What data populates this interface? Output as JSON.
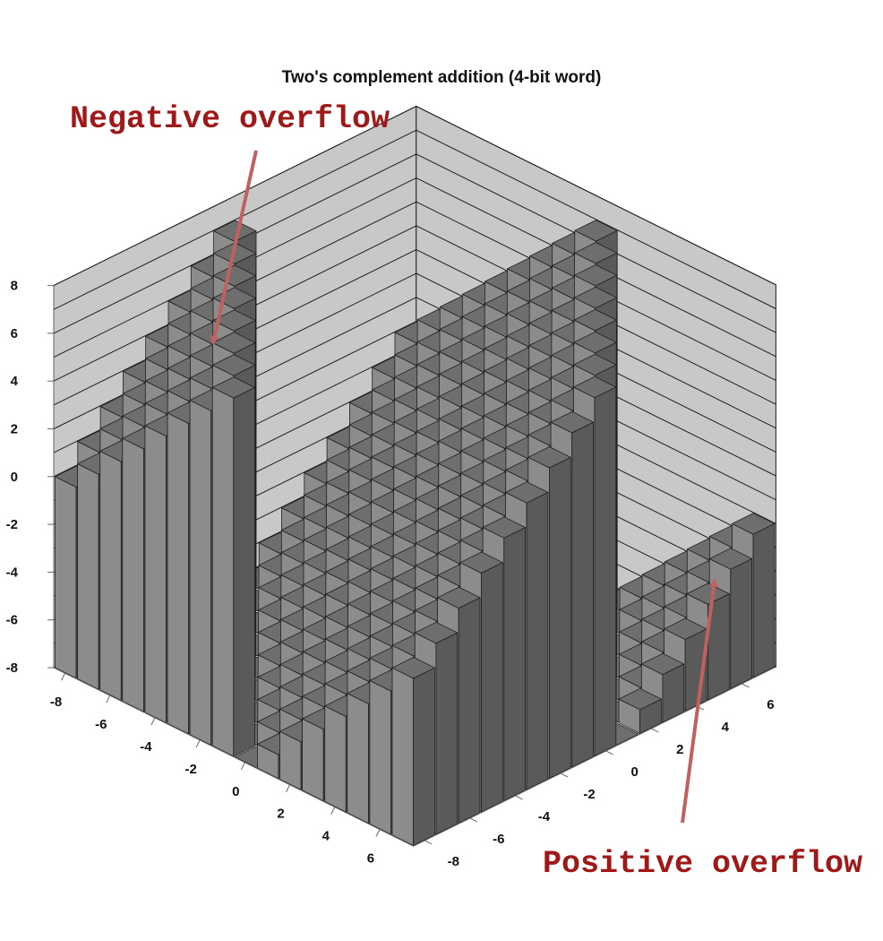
{
  "chart_data": {
    "type": "bar",
    "subtype": "3d-bar",
    "title": "Two's complement addition (4-bit word)",
    "xlabel": "",
    "ylabel": "",
    "zlabel": "",
    "x": [
      -8,
      -7,
      -6,
      -5,
      -4,
      -3,
      -2,
      -1,
      0,
      1,
      2,
      3,
      4,
      5,
      6,
      7
    ],
    "y": [
      -8,
      -7,
      -6,
      -5,
      -4,
      -3,
      -2,
      -1,
      0,
      1,
      2,
      3,
      4,
      5,
      6,
      7
    ],
    "value_rule": "z = x + y, wrapped to the 4-bit two's complement range [-8, 7]",
    "zlim": [
      -8,
      8
    ],
    "x_tick_labels": [
      "-8",
      "-6",
      "-4",
      "-2",
      "0",
      "2",
      "4",
      "6"
    ],
    "y_tick_labels": [
      "-8",
      "-6",
      "-4",
      "-2",
      "0",
      "2",
      "4",
      "6"
    ],
    "z_tick_labels": [
      "-8",
      "-6",
      "-4",
      "-2",
      "0",
      "2",
      "4",
      "6",
      "8"
    ],
    "grid": true,
    "legend": "none",
    "colors": {
      "bar_front": "#8c8c8c",
      "bar_side": "#5a5a5a",
      "bar_top": "#6e6e6e",
      "bar_edge": "#1e1e1e",
      "wall": "#c8c8c8",
      "wall_grid": "#1e1e1e",
      "annotation": "#a01818",
      "arrow": "#c06060"
    },
    "annotations": [
      {
        "text": "Negative overflow",
        "target": {
          "x": -1,
          "y": -8
        }
      },
      {
        "text": "Positive overflow",
        "target": {
          "x": 7,
          "y": 1
        }
      }
    ]
  }
}
